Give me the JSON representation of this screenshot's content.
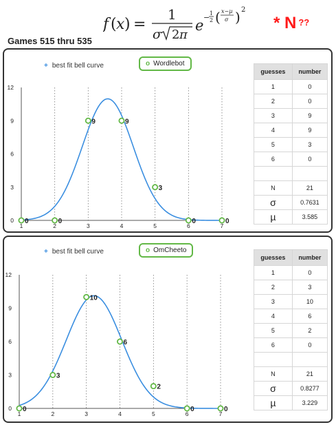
{
  "header": {
    "formula_alt": "f(x) = 1 / (σ√2π) e^(−½((x−μ)/σ)²)",
    "annotation": "* N",
    "annotation_suffix": "??",
    "subtitle": "Games 515 thru 535"
  },
  "colors": {
    "curve": "#3a8ee0",
    "marker": "#62b846",
    "annotation": "#ff1a1a"
  },
  "chart_data": [
    {
      "type": "line",
      "legend": [
        "best fit bell curve",
        "Wordlebot"
      ],
      "xlim": [
        1,
        7
      ],
      "ylim": [
        0,
        12
      ],
      "x_ticks": [
        1,
        2,
        3,
        4,
        5,
        6,
        7
      ],
      "y_ticks": [
        0,
        3,
        6,
        9,
        12
      ],
      "grid": "vertical dotted",
      "series": [
        {
          "name": "Wordlebot",
          "x": [
            1,
            2,
            3,
            4,
            5,
            6,
            7
          ],
          "values": [
            0,
            0,
            9,
            9,
            3,
            0,
            0
          ]
        }
      ],
      "fit": {
        "N": 21,
        "sigma": 0.7631,
        "mu": 3.585
      },
      "table": {
        "headers": [
          "guesses",
          "number"
        ],
        "rows": [
          [
            "1",
            "0"
          ],
          [
            "2",
            "0"
          ],
          [
            "3",
            "9"
          ],
          [
            "4",
            "9"
          ],
          [
            "5",
            "3"
          ],
          [
            "6",
            "0"
          ]
        ],
        "stats": [
          [
            "N",
            "21"
          ],
          [
            "σ",
            "0.7631"
          ],
          [
            "µ",
            "3.585"
          ]
        ]
      }
    },
    {
      "type": "line",
      "legend": [
        "best fit bell curve",
        "OmCheeto"
      ],
      "xlim": [
        1,
        7
      ],
      "ylim": [
        0,
        12
      ],
      "x_ticks": [
        1,
        2,
        3,
        4,
        5,
        6,
        7
      ],
      "y_ticks": [
        0,
        3,
        6,
        9,
        12
      ],
      "grid": "vertical dotted",
      "series": [
        {
          "name": "OmCheeto",
          "x": [
            1,
            2,
            3,
            4,
            5,
            6,
            7
          ],
          "values": [
            0,
            3,
            10,
            6,
            2,
            0,
            0
          ]
        }
      ],
      "fit": {
        "N": 21,
        "sigma": 0.8277,
        "mu": 3.229
      },
      "table": {
        "headers": [
          "guesses",
          "number"
        ],
        "rows": [
          [
            "1",
            "0"
          ],
          [
            "2",
            "3"
          ],
          [
            "3",
            "10"
          ],
          [
            "4",
            "6"
          ],
          [
            "5",
            "2"
          ],
          [
            "6",
            "0"
          ]
        ],
        "stats": [
          [
            "N",
            "21"
          ],
          [
            "σ",
            "0.8277"
          ],
          [
            "µ",
            "3.229"
          ]
        ]
      }
    }
  ]
}
